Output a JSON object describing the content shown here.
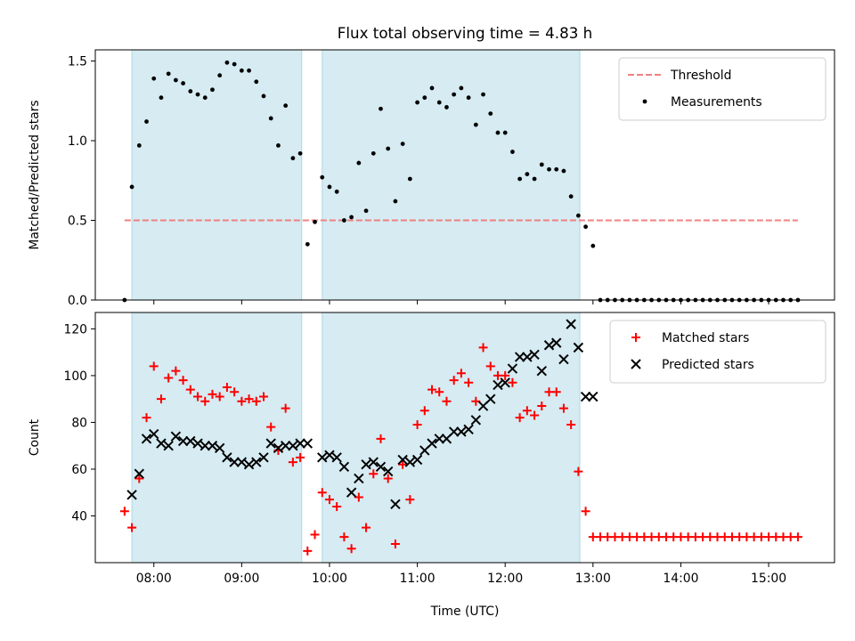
{
  "title": "Flux total observing time = 4.83 h",
  "xlabel": "Time (UTC)",
  "chart_data": [
    {
      "type": "scatter",
      "ylabel": "Matched/Predicted stars",
      "ylim": [
        0,
        1.57
      ],
      "xlim": [
        "07:20",
        "15:45"
      ],
      "yticks": [
        "0.0",
        "0.5",
        "1.0",
        "1.5"
      ],
      "legend_position": "top-right",
      "shaded_intervals": [
        [
          "07:45",
          "09:41"
        ],
        [
          "09:55",
          "12:51"
        ]
      ],
      "threshold": {
        "name": "Threshold",
        "y": 0.5,
        "x_start": "07:40",
        "x_end": "15:20",
        "color": "#f08080"
      },
      "series": [
        {
          "name": "Measurements",
          "color": "#000000",
          "points": [
            [
              "07:40",
              0.0
            ],
            [
              "07:45",
              0.71
            ],
            [
              "07:50",
              0.97
            ],
            [
              "07:55",
              1.12
            ],
            [
              "08:00",
              1.39
            ],
            [
              "08:05",
              1.27
            ],
            [
              "08:10",
              1.42
            ],
            [
              "08:15",
              1.38
            ],
            [
              "08:20",
              1.36
            ],
            [
              "08:25",
              1.31
            ],
            [
              "08:30",
              1.29
            ],
            [
              "08:35",
              1.27
            ],
            [
              "08:40",
              1.32
            ],
            [
              "08:45",
              1.41
            ],
            [
              "08:50",
              1.49
            ],
            [
              "08:55",
              1.48
            ],
            [
              "09:00",
              1.44
            ],
            [
              "09:05",
              1.44
            ],
            [
              "09:10",
              1.37
            ],
            [
              "09:15",
              1.28
            ],
            [
              "09:20",
              1.14
            ],
            [
              "09:25",
              0.97
            ],
            [
              "09:30",
              1.22
            ],
            [
              "09:35",
              0.89
            ],
            [
              "09:40",
              0.92
            ],
            [
              "09:45",
              0.35
            ],
            [
              "09:50",
              0.49
            ],
            [
              "09:55",
              0.77
            ],
            [
              "10:00",
              0.71
            ],
            [
              "10:05",
              0.68
            ],
            [
              "10:10",
              0.5
            ],
            [
              "10:15",
              0.52
            ],
            [
              "10:20",
              0.86
            ],
            [
              "10:25",
              0.56
            ],
            [
              "10:30",
              0.92
            ],
            [
              "10:35",
              1.2
            ],
            [
              "10:40",
              0.95
            ],
            [
              "10:45",
              0.62
            ],
            [
              "10:50",
              0.98
            ],
            [
              "10:55",
              0.76
            ],
            [
              "11:00",
              1.24
            ],
            [
              "11:05",
              1.27
            ],
            [
              "11:10",
              1.33
            ],
            [
              "11:15",
              1.24
            ],
            [
              "11:20",
              1.21
            ],
            [
              "11:25",
              1.29
            ],
            [
              "11:30",
              1.33
            ],
            [
              "11:35",
              1.27
            ],
            [
              "11:40",
              1.1
            ],
            [
              "11:45",
              1.29
            ],
            [
              "11:50",
              1.17
            ],
            [
              "11:55",
              1.05
            ],
            [
              "12:00",
              1.05
            ],
            [
              "12:05",
              0.93
            ],
            [
              "12:10",
              0.76
            ],
            [
              "12:15",
              0.79
            ],
            [
              "12:20",
              0.76
            ],
            [
              "12:25",
              0.85
            ],
            [
              "12:30",
              0.82
            ],
            [
              "12:35",
              0.82
            ],
            [
              "12:40",
              0.81
            ],
            [
              "12:45",
              0.65
            ],
            [
              "12:50",
              0.53
            ],
            [
              "12:55",
              0.46
            ],
            [
              "13:00",
              0.34
            ],
            [
              "13:05",
              0.0
            ],
            [
              "13:10",
              0.0
            ],
            [
              "13:15",
              0.0
            ],
            [
              "13:20",
              0.0
            ],
            [
              "13:25",
              0.0
            ],
            [
              "13:30",
              0.0
            ],
            [
              "13:35",
              0.0
            ],
            [
              "13:40",
              0.0
            ],
            [
              "13:45",
              0.0
            ],
            [
              "13:50",
              0.0
            ],
            [
              "13:55",
              0.0
            ],
            [
              "14:00",
              0.0
            ],
            [
              "14:05",
              0.0
            ],
            [
              "14:10",
              0.0
            ],
            [
              "14:15",
              0.0
            ],
            [
              "14:20",
              0.0
            ],
            [
              "14:25",
              0.0
            ],
            [
              "14:30",
              0.0
            ],
            [
              "14:35",
              0.0
            ],
            [
              "14:40",
              0.0
            ],
            [
              "14:45",
              0.0
            ],
            [
              "14:50",
              0.0
            ],
            [
              "14:55",
              0.0
            ],
            [
              "15:00",
              0.0
            ],
            [
              "15:05",
              0.0
            ],
            [
              "15:10",
              0.0
            ],
            [
              "15:15",
              0.0
            ],
            [
              "15:20",
              0.0
            ]
          ]
        }
      ]
    },
    {
      "type": "scatter",
      "ylabel": "Count",
      "ylim": [
        20,
        127
      ],
      "xlim": [
        "07:20",
        "15:45"
      ],
      "yticks": [
        "40",
        "60",
        "80",
        "100",
        "120"
      ],
      "xticks": [
        "08:00",
        "09:00",
        "10:00",
        "11:00",
        "12:00",
        "13:00",
        "14:00",
        "15:00"
      ],
      "legend_position": "top-right",
      "shaded_intervals": [
        [
          "07:45",
          "09:41"
        ],
        [
          "09:55",
          "12:51"
        ]
      ],
      "series": [
        {
          "name": "Matched stars",
          "color": "#ff0000",
          "marker": "plus",
          "points": [
            [
              "07:40",
              42
            ],
            [
              "07:45",
              35
            ],
            [
              "07:50",
              56
            ],
            [
              "07:55",
              82
            ],
            [
              "08:00",
              104
            ],
            [
              "08:05",
              90
            ],
            [
              "08:10",
              99
            ],
            [
              "08:15",
              102
            ],
            [
              "08:20",
              98
            ],
            [
              "08:25",
              94
            ],
            [
              "08:30",
              91
            ],
            [
              "08:35",
              89
            ],
            [
              "08:40",
              92
            ],
            [
              "08:45",
              91
            ],
            [
              "08:50",
              95
            ],
            [
              "08:55",
              93
            ],
            [
              "09:00",
              89
            ],
            [
              "09:05",
              90
            ],
            [
              "09:10",
              89
            ],
            [
              "09:15",
              91
            ],
            [
              "09:20",
              78
            ],
            [
              "09:25",
              68
            ],
            [
              "09:30",
              86
            ],
            [
              "09:35",
              63
            ],
            [
              "09:40",
              65
            ],
            [
              "09:45",
              25
            ],
            [
              "09:50",
              32
            ],
            [
              "09:55",
              50
            ],
            [
              "10:00",
              47
            ],
            [
              "10:05",
              44
            ],
            [
              "10:10",
              31
            ],
            [
              "10:15",
              26
            ],
            [
              "10:20",
              48
            ],
            [
              "10:25",
              35
            ],
            [
              "10:30",
              58
            ],
            [
              "10:35",
              73
            ],
            [
              "10:40",
              56
            ],
            [
              "10:45",
              28
            ],
            [
              "10:50",
              62
            ],
            [
              "10:55",
              47
            ],
            [
              "11:00",
              79
            ],
            [
              "11:05",
              85
            ],
            [
              "11:10",
              94
            ],
            [
              "11:15",
              93
            ],
            [
              "11:20",
              89
            ],
            [
              "11:25",
              98
            ],
            [
              "11:30",
              101
            ],
            [
              "11:35",
              97
            ],
            [
              "11:40",
              89
            ],
            [
              "11:45",
              112
            ],
            [
              "11:50",
              104
            ],
            [
              "11:55",
              100
            ],
            [
              "12:00",
              100
            ],
            [
              "12:05",
              97
            ],
            [
              "12:10",
              82
            ],
            [
              "12:15",
              85
            ],
            [
              "12:20",
              83
            ],
            [
              "12:25",
              87
            ],
            [
              "12:30",
              93
            ],
            [
              "12:35",
              93
            ],
            [
              "12:40",
              86
            ],
            [
              "12:45",
              79
            ],
            [
              "12:50",
              59
            ],
            [
              "12:55",
              42
            ],
            [
              "13:00",
              31
            ],
            [
              "13:05",
              31
            ],
            [
              "13:10",
              31
            ],
            [
              "13:15",
              31
            ],
            [
              "13:20",
              31
            ],
            [
              "13:25",
              31
            ],
            [
              "13:30",
              31
            ],
            [
              "13:35",
              31
            ],
            [
              "13:40",
              31
            ],
            [
              "13:45",
              31
            ],
            [
              "13:50",
              31
            ],
            [
              "13:55",
              31
            ],
            [
              "14:00",
              31
            ],
            [
              "14:05",
              31
            ],
            [
              "14:10",
              31
            ],
            [
              "14:15",
              31
            ],
            [
              "14:20",
              31
            ],
            [
              "14:25",
              31
            ],
            [
              "14:30",
              31
            ],
            [
              "14:35",
              31
            ],
            [
              "14:40",
              31
            ],
            [
              "14:45",
              31
            ],
            [
              "14:50",
              31
            ],
            [
              "14:55",
              31
            ],
            [
              "15:00",
              31
            ],
            [
              "15:05",
              31
            ],
            [
              "15:10",
              31
            ],
            [
              "15:15",
              31
            ],
            [
              "15:20",
              31
            ]
          ]
        },
        {
          "name": "Predicted stars",
          "color": "#000000",
          "marker": "x",
          "points": [
            [
              "07:45",
              49
            ],
            [
              "07:50",
              58
            ],
            [
              "07:55",
              73
            ],
            [
              "08:00",
              75
            ],
            [
              "08:05",
              71
            ],
            [
              "08:10",
              70
            ],
            [
              "08:15",
              74
            ],
            [
              "08:20",
              72
            ],
            [
              "08:25",
              72
            ],
            [
              "08:30",
              71
            ],
            [
              "08:35",
              70
            ],
            [
              "08:40",
              70
            ],
            [
              "08:45",
              69
            ],
            [
              "08:50",
              65
            ],
            [
              "08:55",
              63
            ],
            [
              "09:00",
              63
            ],
            [
              "09:05",
              62
            ],
            [
              "09:10",
              63
            ],
            [
              "09:15",
              65
            ],
            [
              "09:20",
              71
            ],
            [
              "09:25",
              69
            ],
            [
              "09:30",
              70
            ],
            [
              "09:35",
              70
            ],
            [
              "09:40",
              71
            ],
            [
              "09:45",
              71
            ],
            [
              "09:55",
              65
            ],
            [
              "10:00",
              66
            ],
            [
              "10:05",
              65
            ],
            [
              "10:10",
              61
            ],
            [
              "10:15",
              50
            ],
            [
              "10:20",
              56
            ],
            [
              "10:25",
              62
            ],
            [
              "10:30",
              63
            ],
            [
              "10:35",
              61
            ],
            [
              "10:40",
              59
            ],
            [
              "10:45",
              45
            ],
            [
              "10:50",
              64
            ],
            [
              "10:55",
              63
            ],
            [
              "11:00",
              64
            ],
            [
              "11:05",
              68
            ],
            [
              "11:10",
              71
            ],
            [
              "11:15",
              73
            ],
            [
              "11:20",
              73
            ],
            [
              "11:25",
              76
            ],
            [
              "11:30",
              76
            ],
            [
              "11:35",
              77
            ],
            [
              "11:40",
              81
            ],
            [
              "11:45",
              87
            ],
            [
              "11:50",
              90
            ],
            [
              "11:55",
              96
            ],
            [
              "12:00",
              97
            ],
            [
              "12:05",
              103
            ],
            [
              "12:10",
              108
            ],
            [
              "12:15",
              108
            ],
            [
              "12:20",
              109
            ],
            [
              "12:25",
              102
            ],
            [
              "12:30",
              113
            ],
            [
              "12:35",
              114
            ],
            [
              "12:40",
              107
            ],
            [
              "12:45",
              122
            ],
            [
              "12:50",
              112
            ],
            [
              "12:55",
              91
            ],
            [
              "13:00",
              91
            ]
          ]
        }
      ]
    }
  ]
}
